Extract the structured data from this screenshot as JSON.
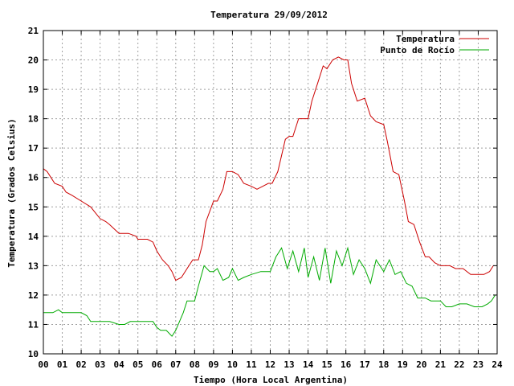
{
  "chart_data": {
    "type": "line",
    "title": "Temperatura 29/09/2012",
    "xlabel": "Tiempo (Hora Local Argentina)",
    "ylabel": "Temperatura (Grados Celsius)",
    "xlim": [
      0,
      24
    ],
    "ylim": [
      10,
      21
    ],
    "x_ticks": [
      "00",
      "01",
      "02",
      "03",
      "04",
      "05",
      "06",
      "07",
      "08",
      "09",
      "10",
      "11",
      "12",
      "13",
      "14",
      "15",
      "16",
      "17",
      "18",
      "19",
      "20",
      "21",
      "22",
      "23",
      "24"
    ],
    "y_ticks": [
      10,
      11,
      12,
      13,
      14,
      15,
      16,
      17,
      18,
      19,
      20,
      21
    ],
    "grid": true,
    "legend_position": "top-right",
    "colors": {
      "Temperatura": "#cc0000",
      "Punto de Rocío": "#00aa00"
    },
    "series": [
      {
        "name": "Temperatura",
        "color": "#cc0000",
        "x": [
          0,
          0.2,
          0.4,
          0.6,
          1.0,
          1.2,
          1.5,
          2.0,
          2.5,
          3.0,
          3.3,
          3.5,
          4.0,
          4.5,
          4.9,
          5.0,
          5.5,
          5.8,
          6.0,
          6.3,
          6.6,
          6.8,
          7.0,
          7.3,
          7.6,
          7.9,
          8.2,
          8.4,
          8.6,
          9.0,
          9.2,
          9.5,
          9.7,
          10.0,
          10.3,
          10.6,
          11.0,
          11.3,
          11.6,
          11.9,
          12.1,
          12.4,
          12.8,
          13.0,
          13.2,
          13.5,
          13.8,
          14.0,
          14.2,
          14.5,
          14.8,
          15.0,
          15.3,
          15.6,
          15.9,
          16.1,
          16.3,
          16.6,
          17.0,
          17.3,
          17.6,
          18.0,
          18.2,
          18.5,
          18.8,
          19.1,
          19.3,
          19.6,
          19.9,
          20.2,
          20.4,
          20.7,
          21.0,
          21.5,
          21.8,
          22.2,
          22.6,
          23.0,
          23.3,
          23.6,
          23.8
        ],
        "values": [
          16.3,
          16.2,
          16.0,
          15.8,
          15.7,
          15.5,
          15.4,
          15.2,
          15.0,
          14.6,
          14.5,
          14.4,
          14.1,
          14.1,
          14.0,
          13.9,
          13.9,
          13.8,
          13.5,
          13.2,
          13.0,
          12.8,
          12.5,
          12.6,
          12.9,
          13.2,
          13.2,
          13.7,
          14.5,
          15.2,
          15.2,
          15.6,
          16.2,
          16.2,
          16.1,
          15.8,
          15.7,
          15.6,
          15.7,
          15.8,
          15.8,
          16.2,
          17.3,
          17.4,
          17.4,
          18.0,
          18.0,
          18.0,
          18.6,
          19.2,
          19.8,
          19.7,
          20.0,
          20.1,
          20.0,
          20.0,
          19.2,
          18.6,
          18.7,
          18.1,
          17.9,
          17.8,
          17.2,
          16.2,
          16.1,
          15.2,
          14.5,
          14.4,
          13.8,
          13.3,
          13.3,
          13.1,
          13.0,
          13.0,
          12.9,
          12.9,
          12.7,
          12.7,
          12.7,
          12.8,
          13.0
        ]
      },
      {
        "name": "Punto de Rocío",
        "color": "#00aa00",
        "x": [
          0,
          0.5,
          0.8,
          1.0,
          1.5,
          2.0,
          2.3,
          2.5,
          3.0,
          3.5,
          4.0,
          4.3,
          4.6,
          5.0,
          5.4,
          5.8,
          6.0,
          6.2,
          6.5,
          6.8,
          7.0,
          7.2,
          7.4,
          7.6,
          8.0,
          8.2,
          8.5,
          8.8,
          9.0,
          9.2,
          9.5,
          9.8,
          10.0,
          10.3,
          10.6,
          11.0,
          11.5,
          12.0,
          12.3,
          12.6,
          12.9,
          13.2,
          13.5,
          13.8,
          14.0,
          14.3,
          14.6,
          14.9,
          15.2,
          15.5,
          15.8,
          16.1,
          16.4,
          16.7,
          17.0,
          17.3,
          17.6,
          18.0,
          18.3,
          18.6,
          18.9,
          19.2,
          19.5,
          19.8,
          20.2,
          20.5,
          21.0,
          21.3,
          21.6,
          22.0,
          22.4,
          22.8,
          23.2,
          23.5,
          23.7,
          23.9
        ],
        "values": [
          11.4,
          11.4,
          11.5,
          11.4,
          11.4,
          11.4,
          11.3,
          11.1,
          11.1,
          11.1,
          11.0,
          11.0,
          11.1,
          11.1,
          11.1,
          11.1,
          10.9,
          10.8,
          10.8,
          10.6,
          10.8,
          11.1,
          11.4,
          11.8,
          11.8,
          12.3,
          13.0,
          12.8,
          12.8,
          12.9,
          12.5,
          12.6,
          12.9,
          12.5,
          12.6,
          12.7,
          12.8,
          12.8,
          13.3,
          13.6,
          12.9,
          13.5,
          12.8,
          13.6,
          12.6,
          13.3,
          12.5,
          13.6,
          12.4,
          13.5,
          13.0,
          13.6,
          12.7,
          13.2,
          12.9,
          12.4,
          13.2,
          12.8,
          13.2,
          12.7,
          12.8,
          12.4,
          12.3,
          11.9,
          11.9,
          11.8,
          11.8,
          11.6,
          11.6,
          11.7,
          11.7,
          11.6,
          11.6,
          11.7,
          11.8,
          12.0
        ]
      }
    ]
  }
}
